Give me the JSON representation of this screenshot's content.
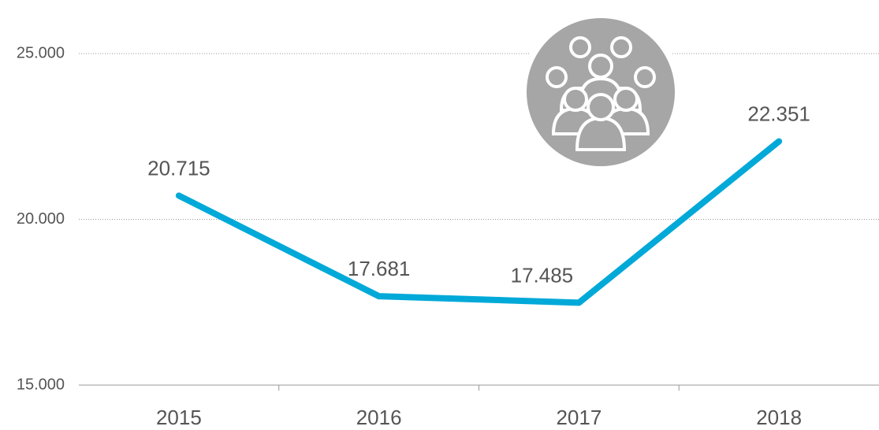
{
  "chart_data": {
    "type": "line",
    "categories": [
      "2015",
      "2016",
      "2017",
      "2018"
    ],
    "series": [
      {
        "name": "Employees",
        "color": "#00a9d8",
        "values": [
          20715,
          17681,
          17485,
          22351
        ],
        "value_labels": [
          "20.715",
          "17.681",
          "17.485",
          "22.351"
        ]
      }
    ],
    "ylim": [
      15000,
      25000
    ],
    "yticks": [
      {
        "value": 15000,
        "label": "15.000"
      },
      {
        "value": 20000,
        "label": "20.000"
      },
      {
        "value": 25000,
        "label": "25.000"
      }
    ],
    "grid": true
  }
}
